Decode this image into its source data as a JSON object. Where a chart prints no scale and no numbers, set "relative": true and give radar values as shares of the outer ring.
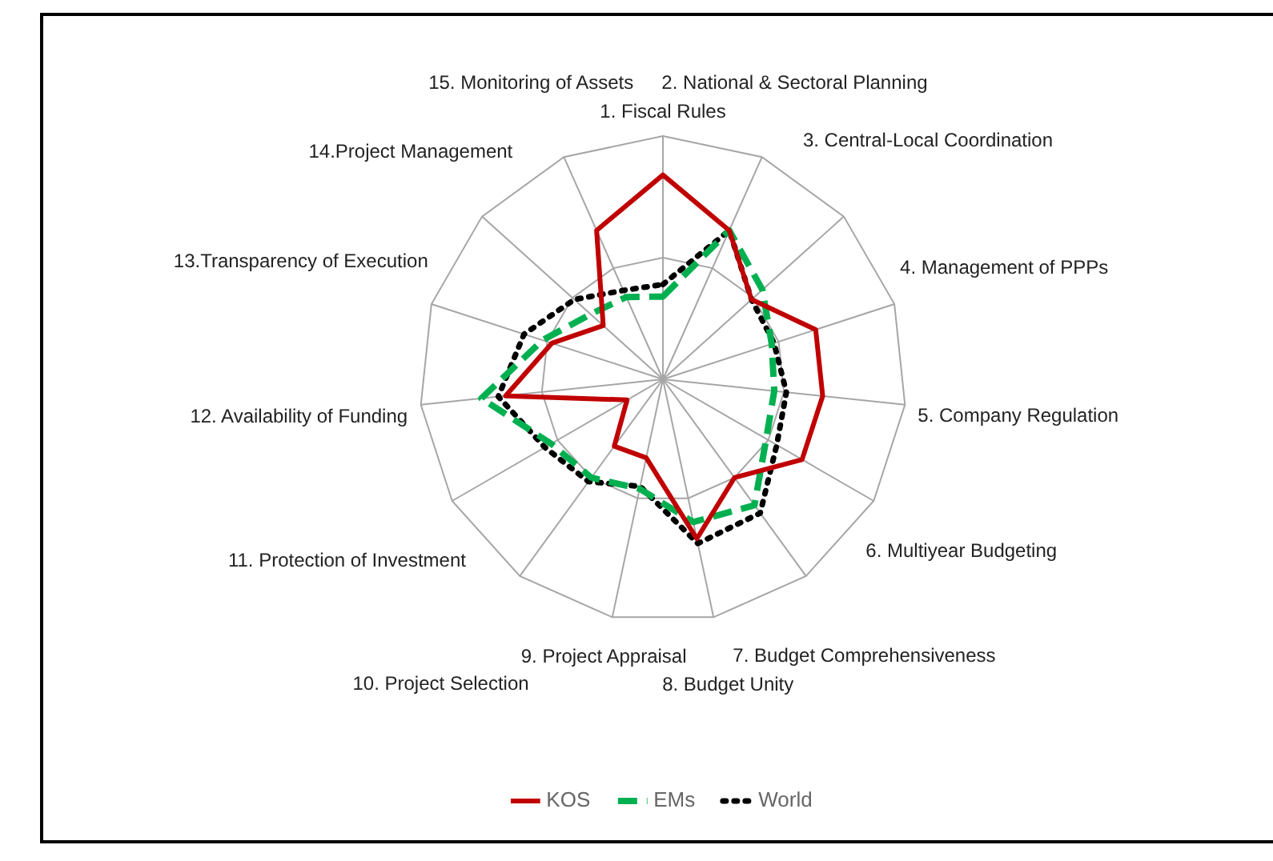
{
  "chart_data": {
    "type": "radar",
    "relative": true,
    "grid": true,
    "legend": "bottom",
    "marker": "none",
    "categories": [
      "1. Fiscal Rules",
      "2. National & Sectoral Planning",
      "3. Central-Local Coordination",
      "4. Management of PPPs",
      "5. Company Regulation",
      "6. Multiyear Budgeting",
      "7. Budget Comprehensiveness",
      "8. Budget Unity",
      "9. Project Appraisal",
      "10. Project Selection",
      "11. Protection of Investment",
      "12. Availability of Funding",
      "13.Transparency of Execution",
      "14.Project Management",
      "15. Monitoring of Assets"
    ],
    "series": [
      {
        "name": "KOS",
        "color": "#c00000",
        "line_style": "solid",
        "values": [
          0.84,
          0.67,
          0.49,
          0.66,
          0.66,
          0.66,
          0.5,
          0.67,
          0.33,
          0.34,
          0.17,
          0.65,
          0.48,
          0.33,
          0.67
        ]
      },
      {
        "name": "EMs",
        "color": "#00b050",
        "line_style": "dashed",
        "values": [
          0.34,
          0.67,
          0.55,
          0.47,
          0.46,
          0.49,
          0.64,
          0.6,
          0.46,
          0.5,
          0.53,
          0.75,
          0.52,
          0.4,
          0.37
        ]
      },
      {
        "name": "World",
        "color": "#000000",
        "line_style": "dotted",
        "values": [
          0.39,
          0.67,
          0.49,
          0.48,
          0.51,
          0.54,
          0.68,
          0.69,
          0.45,
          0.52,
          0.56,
          0.68,
          0.6,
          0.49,
          0.4
        ]
      }
    ]
  }
}
